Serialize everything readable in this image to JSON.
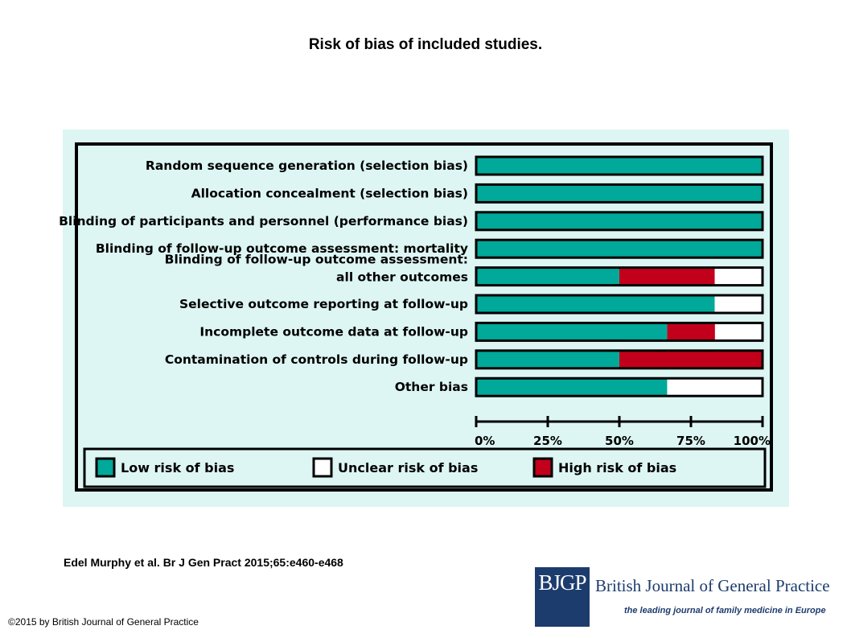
{
  "page": {
    "title": "Risk of bias of included studies.",
    "citation": "Edel Murphy et al. Br J Gen Pract 2015;65:e460-e468",
    "copyright": "©2015 by British Journal of General Practice"
  },
  "brand": {
    "logo_text": "BJGP",
    "journal_name": "British Journal of General Practice",
    "tagline": "the leading journal of family medicine in Europe",
    "color": "#1d3c6e"
  },
  "chart_data": {
    "type": "bar",
    "orientation": "horizontal",
    "stacked": true,
    "categories": [
      [
        "Random sequence generation (selection bias)"
      ],
      [
        "Allocation concealment (selection bias)"
      ],
      [
        "Blinding of participants and personnel (performance bias)"
      ],
      [
        "Blinding of follow-up outcome assessment: mortality"
      ],
      [
        "Blinding of follow-up outcome assessment:",
        "all other outcomes"
      ],
      [
        "Selective outcome reporting at follow-up"
      ],
      [
        "Incomplete outcome data at follow-up"
      ],
      [
        "Contamination of controls during follow-up"
      ],
      [
        "Other bias"
      ]
    ],
    "series": [
      {
        "name": "Low risk of bias",
        "color": "#00a999",
        "values": [
          100,
          100,
          100,
          100,
          50,
          83.3,
          66.7,
          50,
          66.7
        ]
      },
      {
        "name": "High risk of bias",
        "color": "#c2001b",
        "values": [
          0,
          0,
          0,
          0,
          33.3,
          0,
          16.7,
          50,
          0
        ]
      },
      {
        "name": "Unclear risk of bias",
        "color": "#ffffff",
        "values": [
          0,
          0,
          0,
          0,
          16.7,
          16.7,
          16.7,
          0,
          33.3
        ]
      }
    ],
    "xlim": [
      0,
      100
    ],
    "xticks": [
      0,
      25,
      50,
      75,
      100
    ],
    "xtick_labels": [
      "0%",
      "25%",
      "50%",
      "75%",
      "100%"
    ],
    "legend_order": [
      "Low risk of bias",
      "Unclear risk of bias",
      "High risk of bias"
    ],
    "legend_position": "bottom",
    "grid": false
  }
}
